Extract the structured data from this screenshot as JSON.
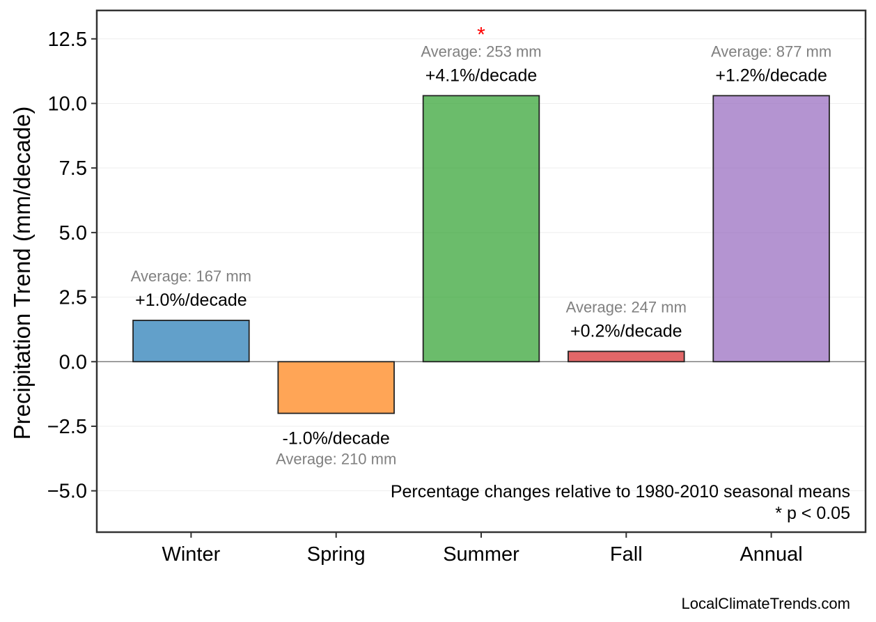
{
  "chart_data": {
    "type": "bar",
    "categories": [
      "Winter",
      "Spring",
      "Summer",
      "Fall",
      "Annual"
    ],
    "values": [
      1.6,
      -2.0,
      10.3,
      0.4,
      10.3
    ],
    "percent_labels": [
      "+1.0%/decade",
      "-1.0%/decade",
      "+4.1%/decade",
      "+0.2%/decade",
      "+1.2%/decade"
    ],
    "average_labels": [
      "Average: 167 mm",
      "Average: 210 mm",
      "Average: 253 mm",
      "Average: 247 mm",
      "Average: 877 mm"
    ],
    "significant": [
      false,
      false,
      true,
      false,
      false
    ],
    "significance_marker": "*",
    "colors": [
      "#1f77b4",
      "#ff7f0e",
      "#2ca02c",
      "#d62728",
      "#9467bd"
    ],
    "bar_opacity": 0.7,
    "ylabel": "Precipitation Trend (mm/decade)",
    "xlabel": "",
    "title": "",
    "ylim": [
      -6.6,
      13.6
    ],
    "yticks": [
      -5.0,
      -2.5,
      0.0,
      2.5,
      5.0,
      7.5,
      10.0,
      12.5
    ],
    "ytick_labels": [
      "−5.0",
      "−2.5",
      "0.0",
      "2.5",
      "5.0",
      "7.5",
      "10.0",
      "12.5"
    ],
    "grid": true,
    "zero_line": true,
    "notes": [
      "Percentage changes relative to 1980-2010 seasonal means",
      "* p < 0.05"
    ],
    "credit": "LocalClimateTrends.com"
  }
}
